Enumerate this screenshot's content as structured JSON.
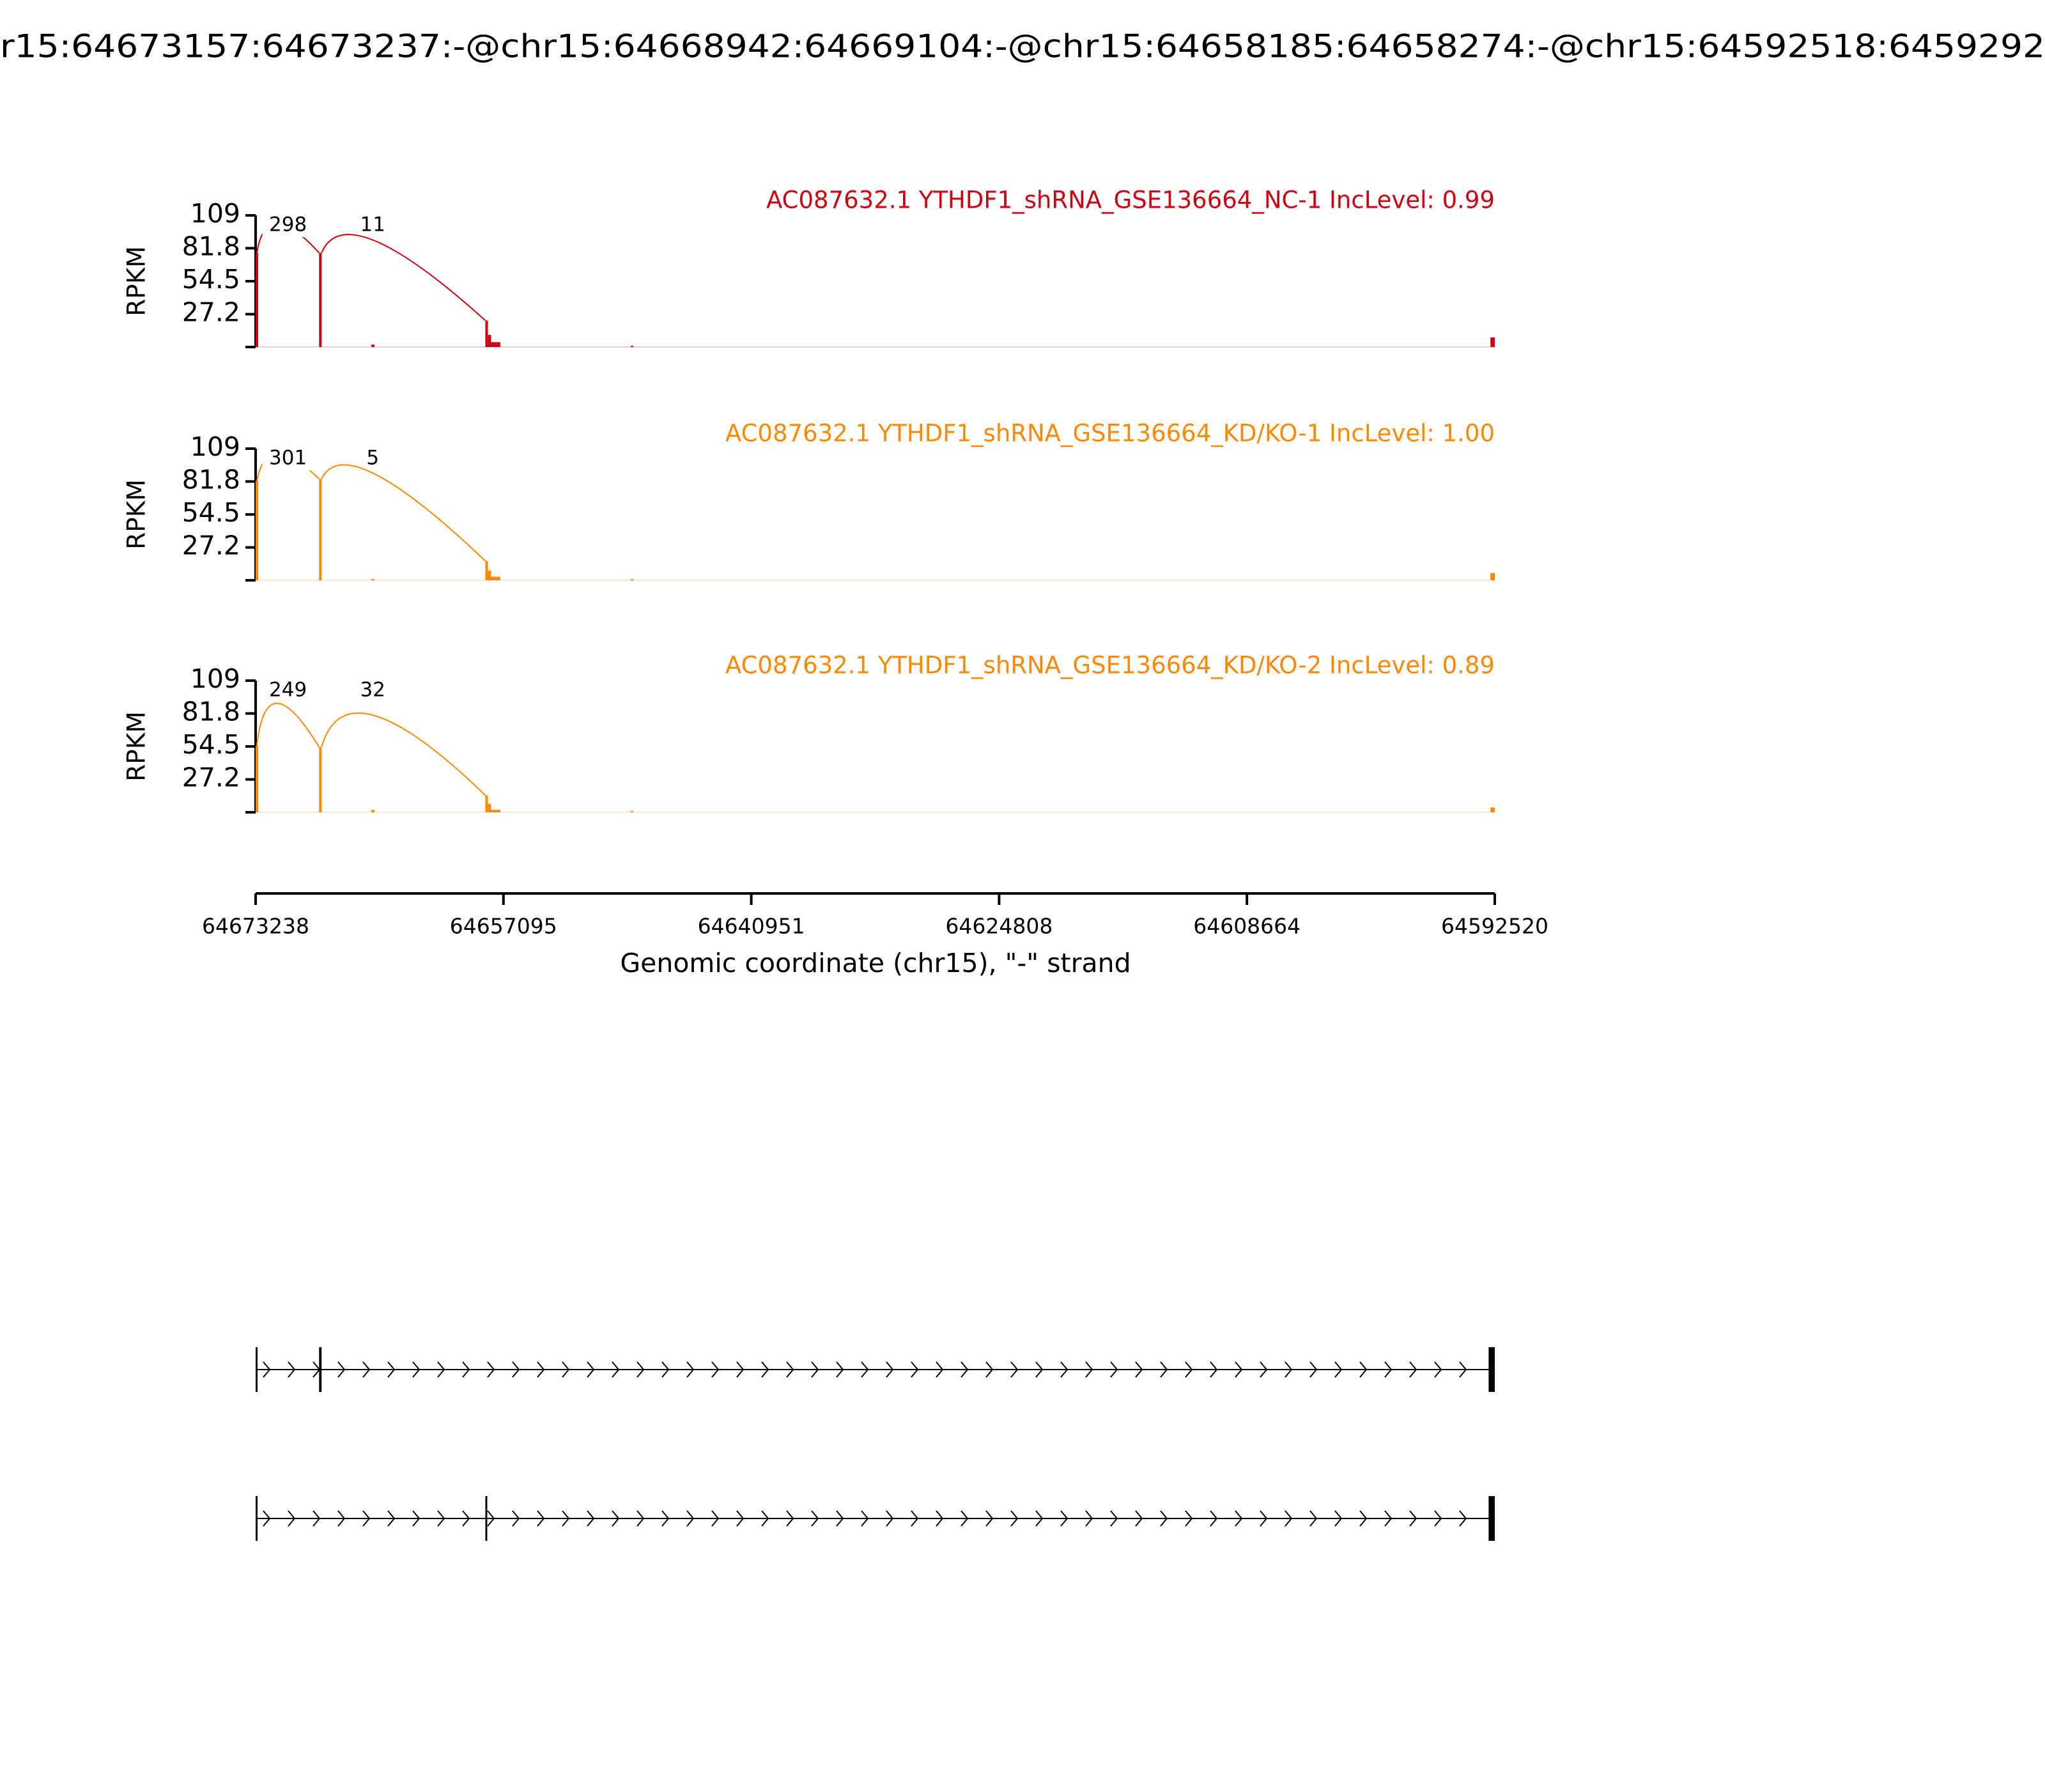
{
  "title": "r15:64673157:64673237:-@chr15:64668942:64669104:-@chr15:64658185:64658274:-@chr15:64592518:6459292",
  "x_axis": {
    "xlim": [
      64673238,
      64592520
    ],
    "xticks": [
      64673238,
      64657095,
      64640951,
      64624808,
      64608664,
      64592520
    ],
    "xlabel": "Genomic coordinate (chr15), \"-\" strand"
  },
  "chart_data": [
    {
      "type": "sashimi",
      "title": "AC087632.1 YTHDF1_shRNA_GSE136664_NC-1 IncLevel: 0.99",
      "color": "#cc0011",
      "ylabel": "RPKM",
      "ylim": [
        0,
        109
      ],
      "yticks": [
        27.2,
        54.5,
        81.8,
        109
      ],
      "coverage": {
        "start": [
          64673238,
          64669104,
          64665700,
          64658274,
          64658100,
          64657900,
          64648800,
          64592800
        ],
        "end": [
          64673157,
          64668942,
          64665500,
          64658185,
          64657900,
          64657300,
          64648700,
          64592520
        ],
        "values": [
          78,
          78,
          2,
          22,
          10,
          4,
          1,
          8
        ]
      },
      "junctions": {
        "start": [
          64673157,
          64668942
        ],
        "end": [
          64669104,
          64658274
        ],
        "counts": [
          298,
          11
        ]
      }
    },
    {
      "type": "sashimi",
      "title": "AC087632.1 YTHDF1_shRNA_GSE136664_KD/KO-1 IncLevel: 1.00",
      "color": "#ff8800",
      "ylabel": "RPKM",
      "ylim": [
        0,
        109
      ],
      "yticks": [
        27.2,
        54.5,
        81.8,
        109
      ],
      "coverage": {
        "start": [
          64673238,
          64669104,
          64665700,
          64658274,
          64658100,
          64657900,
          64648800,
          64592800
        ],
        "end": [
          64673157,
          64668942,
          64665500,
          64658185,
          64657900,
          64657300,
          64648700,
          64592520
        ],
        "values": [
          82,
          84,
          1,
          16,
          8,
          3,
          1,
          6
        ]
      },
      "junctions": {
        "start": [
          64673157,
          64668942
        ],
        "end": [
          64669104,
          64658274
        ],
        "counts": [
          301,
          5
        ]
      }
    },
    {
      "type": "sashimi",
      "title": "AC087632.1 YTHDF1_shRNA_GSE136664_KD/KO-2 IncLevel: 0.89",
      "color": "#ff8800",
      "ylabel": "RPKM",
      "ylim": [
        0,
        109
      ],
      "yticks": [
        27.2,
        54.5,
        81.8,
        109
      ],
      "coverage": {
        "start": [
          64673238,
          64669104,
          64665700,
          64658274,
          64658100,
          64657900,
          64648800,
          64592800
        ],
        "end": [
          64673157,
          64668942,
          64665500,
          64658185,
          64657900,
          64657300,
          64648700,
          64592520
        ],
        "values": [
          55,
          54,
          2,
          14,
          7,
          2,
          1,
          4
        ]
      },
      "junctions": {
        "start": [
          64673157,
          64668942
        ],
        "end": [
          64669104,
          64658274
        ],
        "counts": [
          249,
          32
        ]
      }
    }
  ],
  "transcripts": [
    {
      "start": [
        64673237,
        64669104,
        64592920
      ],
      "end": [
        64673157,
        64668942,
        64592518
      ]
    },
    {
      "start": [
        64673237,
        64658274,
        64592920
      ],
      "end": [
        64673157,
        64658185,
        64592518
      ]
    }
  ]
}
